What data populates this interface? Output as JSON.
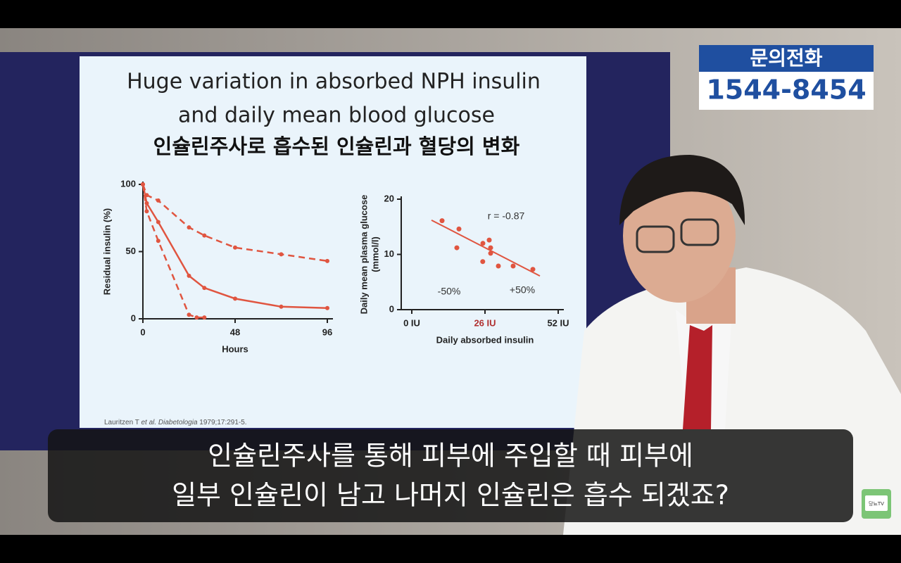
{
  "phone_box": {
    "title": "문의전화",
    "number": "1544-8454"
  },
  "slide": {
    "title_en": [
      "Huge variation in absorbed NPH insulin",
      "and daily mean blood glucose"
    ],
    "title_ko": "인슐린주사로 흡수된 인슐린과 혈당의 변화",
    "citation": [
      "Lauritzen T ",
      "et al. Diabetologia",
      " 1979;17:291-5."
    ]
  },
  "chart_data": [
    {
      "type": "line",
      "xlabel": "Hours",
      "ylabel": "Residual insulin (%)",
      "xlim": [
        0,
        96
      ],
      "xticks": [
        0,
        48,
        96
      ],
      "ylim": [
        0,
        100
      ],
      "yticks": [
        0,
        50,
        100
      ],
      "series": [
        {
          "color": "#e05540",
          "dashed": true,
          "x": [
            0,
            2,
            8,
            24,
            32,
            48,
            72,
            96
          ],
          "values": [
            100,
            92,
            88,
            68,
            62,
            53,
            48,
            43
          ]
        },
        {
          "color": "#e05540",
          "dashed": false,
          "x": [
            0,
            2,
            8,
            24,
            32,
            48,
            72,
            96
          ],
          "values": [
            100,
            86,
            72,
            32,
            23,
            15,
            9,
            8
          ]
        },
        {
          "color": "#e05540",
          "dashed": true,
          "x": [
            0,
            2,
            8,
            24,
            28,
            32
          ],
          "values": [
            100,
            80,
            58,
            3,
            1,
            1
          ]
        }
      ]
    },
    {
      "type": "scatter",
      "xlabel": "Daily absorbed insulin",
      "ylabel": [
        "Daily mean plasma glucose",
        "(mmol/l)"
      ],
      "xlim": [
        0,
        52
      ],
      "xticks": [
        {
          "value": 0,
          "label": "0 IU"
        },
        {
          "value": 26,
          "label": "26 IU"
        },
        {
          "value": 52,
          "label": "52 IU"
        }
      ],
      "highlight_tick_color": "#b03030",
      "ylim": [
        0,
        20
      ],
      "yticks": [
        0,
        10,
        20
      ],
      "color": "#e05540",
      "x": [
        10.75,
        16.75,
        16,
        25.25,
        27.5,
        28,
        25.2,
        28,
        30.75,
        36,
        43
      ],
      "y": [
        16.1,
        14.6,
        11.2,
        12,
        12.6,
        11.2,
        8.7,
        10.2,
        7.9,
        7.9,
        7.3
      ],
      "trendline": {
        "x": [
          7,
          45.5
        ],
        "y": [
          16.2,
          6.1
        ]
      },
      "annotations": [
        "r = -0.87",
        "-50%",
        "+50%"
      ]
    }
  ],
  "caption": [
    "인슐린주사를 통해 피부에 주입할 때 피부에",
    "일부 인슐린이 남고 나머지 인슐린은 흡수 되겠죠?"
  ],
  "logo": "당뇨TV"
}
